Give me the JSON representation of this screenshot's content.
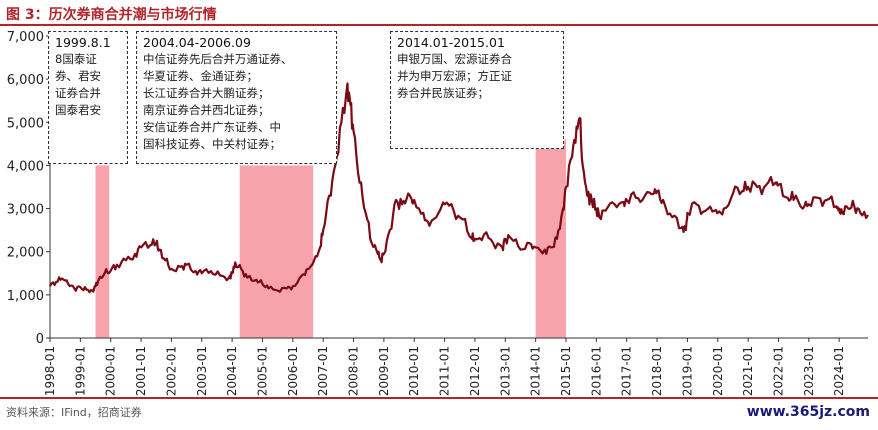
{
  "title": "图 3：历次券商合并潮与市场行情",
  "source": "资料来源：IFind，招商证券",
  "watermark": "www.365jz.com",
  "colors": {
    "accent": "#b0242c",
    "line": "#7a0a14",
    "highlight": "#f7a3ab"
  },
  "annotations": [
    {
      "header": "1999.8.1",
      "lines": [
        "8国泰证",
        "券、君安",
        "证券合并",
        "国泰君安"
      ]
    },
    {
      "header": "2004.04-2006.09",
      "lines": [
        "中信证券先后合并万通证券、",
        "华夏证券、金通证券；",
        "长江证券合并大鹏证券；",
        "南京证券合并西北证券；",
        "安信证券合并广东证券、中",
        "国科技证券、中关村证券；"
      ]
    },
    {
      "header": "2014.01-2015.01",
      "lines": [
        "申银万国、宏源证券合",
        "并为申万宏源；方正证",
        "券合并民族证券；"
      ]
    }
  ],
  "chart_data": {
    "type": "line",
    "ylim": [
      0,
      7000
    ],
    "yticks": [
      "0",
      "1,000",
      "2,000",
      "3,000",
      "4,000",
      "5,000",
      "6,000",
      "7,000"
    ],
    "xticks": [
      "1998-01",
      "1999-01",
      "2000-01",
      "2001-01",
      "2002-01",
      "2003-01",
      "2004-01",
      "2005-01",
      "2006-01",
      "2007-01",
      "2008-01",
      "2009-01",
      "2010-01",
      "2011-01",
      "2012-01",
      "2013-01",
      "2014-01",
      "2015-01",
      "2016-01",
      "2017-01",
      "2018-01",
      "2019-01",
      "2020-01",
      "2021-01",
      "2022-01",
      "2023-01",
      "2024-01"
    ],
    "x_start": 1998.0,
    "x_end": 2024.95,
    "highlights": [
      {
        "from": 1999.5,
        "to": 1999.95
      },
      {
        "from": 2004.25,
        "to": 2006.67
      },
      {
        "from": 2014.0,
        "to": 2015.0
      }
    ],
    "series": [
      {
        "x": [
          1998.0,
          1998.2,
          1998.4,
          1998.6,
          1998.8,
          1999.0,
          1999.2,
          1999.4,
          1999.5,
          1999.6,
          1999.8,
          2000.0,
          2000.2,
          2000.5,
          2000.8,
          2001.0,
          2001.3,
          2001.5,
          2001.6,
          2001.8,
          2002.0,
          2002.3,
          2002.5,
          2002.8,
          2003.0,
          2003.3,
          2003.6,
          2003.9,
          2004.0,
          2004.1,
          2004.3,
          2004.5,
          2004.8,
          2005.0,
          2005.2,
          2005.5,
          2005.8,
          2006.0,
          2006.3,
          2006.5,
          2006.7,
          2006.9,
          2007.0,
          2007.2,
          2007.4,
          2007.6,
          2007.8,
          2007.9,
          2008.0,
          2008.2,
          2008.4,
          2008.6,
          2008.8,
          2008.9,
          2009.0,
          2009.2,
          2009.4,
          2009.6,
          2009.8,
          2010.0,
          2010.3,
          2010.5,
          2010.8,
          2011.0,
          2011.3,
          2011.6,
          2011.9,
          2012.0,
          2012.3,
          2012.6,
          2012.9,
          2013.0,
          2013.2,
          2013.5,
          2013.8,
          2014.0,
          2014.3,
          2014.5,
          2014.7,
          2014.9,
          2015.0,
          2015.2,
          2015.35,
          2015.45,
          2015.55,
          2015.7,
          2015.85,
          2016.0,
          2016.1,
          2016.3,
          2016.6,
          2016.9,
          2017.0,
          2017.3,
          2017.6,
          2017.9,
          2018.0,
          2018.2,
          2018.5,
          2018.8,
          2018.95,
          2019.0,
          2019.3,
          2019.6,
          2019.9,
          2020.0,
          2020.2,
          2020.5,
          2020.8,
          2021.0,
          2021.3,
          2021.6,
          2021.9,
          2022.0,
          2022.3,
          2022.5,
          2022.8,
          2023.0,
          2023.3,
          2023.6,
          2023.9,
          2024.0,
          2024.1,
          2024.3,
          2024.5,
          2024.7,
          2024.95
        ],
        "values": [
          1200,
          1300,
          1380,
          1250,
          1150,
          1180,
          1120,
          1100,
          1200,
          1350,
          1500,
          1560,
          1700,
          1800,
          1950,
          2100,
          2150,
          2200,
          2050,
          1800,
          1600,
          1650,
          1700,
          1550,
          1500,
          1550,
          1450,
          1400,
          1500,
          1750,
          1600,
          1400,
          1350,
          1250,
          1150,
          1100,
          1150,
          1200,
          1450,
          1600,
          1800,
          2100,
          2500,
          3300,
          4000,
          5000,
          5900,
          5400,
          4800,
          3600,
          2900,
          2200,
          1950,
          1800,
          1950,
          2500,
          3200,
          3100,
          3350,
          3200,
          2900,
          2600,
          2900,
          3100,
          2950,
          2750,
          2300,
          2300,
          2400,
          2200,
          2100,
          2300,
          2300,
          2050,
          2200,
          2100,
          2050,
          2100,
          2300,
          3000,
          3500,
          4200,
          4900,
          5100,
          4000,
          3300,
          3200,
          3000,
          2800,
          2950,
          3100,
          3150,
          3200,
          3250,
          3300,
          3350,
          3400,
          3200,
          2800,
          2550,
          2500,
          2900,
          3100,
          2950,
          2950,
          2900,
          3000,
          3350,
          3400,
          3500,
          3500,
          3550,
          3600,
          3550,
          3250,
          3200,
          3000,
          3100,
          3250,
          3200,
          3050,
          3000,
          2900,
          3000,
          3050,
          2900,
          2850
        ]
      }
    ]
  }
}
